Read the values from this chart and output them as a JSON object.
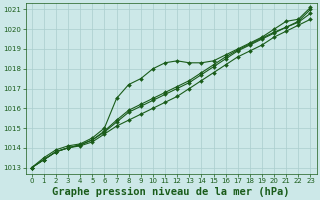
{
  "title": "Graphe pression niveau de la mer (hPa)",
  "background_color": "#cce8e8",
  "grid_color": "#aacece",
  "line_color": "#1a5c1a",
  "xlim": [
    -0.5,
    23.5
  ],
  "ylim": [
    1012.7,
    1021.3
  ],
  "yticks": [
    1013,
    1014,
    1015,
    1016,
    1017,
    1018,
    1019,
    1020,
    1021
  ],
  "xticks": [
    0,
    1,
    2,
    3,
    4,
    5,
    6,
    7,
    8,
    9,
    10,
    11,
    12,
    13,
    14,
    15,
    16,
    17,
    18,
    19,
    20,
    21,
    22,
    23
  ],
  "series": [
    [
      1013.0,
      1013.4,
      1013.8,
      1014.0,
      1014.1,
      1014.3,
      1014.7,
      1015.1,
      1015.4,
      1015.7,
      1016.0,
      1016.3,
      1016.6,
      1017.0,
      1017.4,
      1017.8,
      1018.2,
      1018.6,
      1018.9,
      1019.2,
      1019.6,
      1019.9,
      1020.2,
      1020.5
    ],
    [
      1013.0,
      1013.4,
      1013.8,
      1014.0,
      1014.15,
      1014.4,
      1014.8,
      1015.3,
      1015.8,
      1016.1,
      1016.4,
      1016.7,
      1017.0,
      1017.3,
      1017.7,
      1018.1,
      1018.5,
      1018.9,
      1019.2,
      1019.5,
      1019.8,
      1020.1,
      1020.4,
      1021.0
    ],
    [
      1013.0,
      1013.5,
      1013.9,
      1014.1,
      1014.2,
      1014.5,
      1015.0,
      1016.5,
      1017.2,
      1017.5,
      1018.0,
      1018.3,
      1018.4,
      1018.3,
      1018.3,
      1018.4,
      1018.7,
      1019.0,
      1019.3,
      1019.6,
      1020.0,
      1020.4,
      1020.5,
      1021.1
    ],
    [
      1013.0,
      1013.4,
      1013.8,
      1014.0,
      1014.15,
      1014.4,
      1014.85,
      1015.4,
      1015.9,
      1016.2,
      1016.5,
      1016.8,
      1017.1,
      1017.4,
      1017.8,
      1018.2,
      1018.6,
      1018.95,
      1019.25,
      1019.55,
      1019.85,
      1020.1,
      1020.35,
      1020.8
    ]
  ],
  "marker": "D",
  "marker_size": 2.0,
  "line_width": 0.8,
  "title_fontsize": 7.5,
  "tick_fontsize": 5.0,
  "tick_color": "#1a5c1a",
  "axis_color": "#1a5c1a"
}
